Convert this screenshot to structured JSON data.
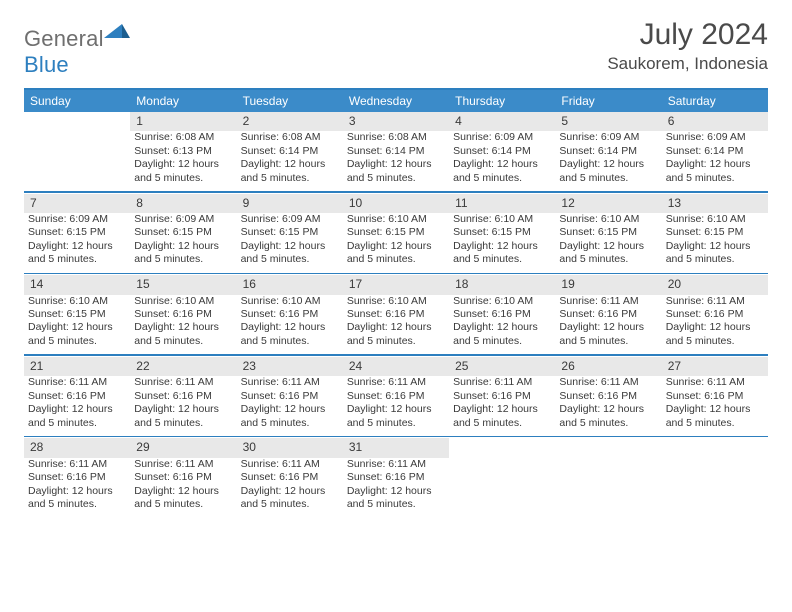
{
  "logo": {
    "general": "General",
    "blue": "Blue"
  },
  "title": "July 2024",
  "location": "Saukorem, Indonesia",
  "colors": {
    "brand_blue": "#3b8bc9",
    "rule_blue": "#2d7fbf",
    "daynum_bg": "#e8e8e8",
    "text": "#3a3a3a",
    "logo_gray": "#6f6f6f",
    "logo_blue": "#2d7fbf",
    "background": "#ffffff"
  },
  "day_headers": [
    "Sunday",
    "Monday",
    "Tuesday",
    "Wednesday",
    "Thursday",
    "Friday",
    "Saturday"
  ],
  "weeks": [
    {
      "daynums": [
        "",
        "1",
        "2",
        "3",
        "4",
        "5",
        "6"
      ],
      "cells": [
        null,
        {
          "sunrise": "6:08 AM",
          "sunset": "6:13 PM",
          "daylight": "12 hours and 5 minutes."
        },
        {
          "sunrise": "6:08 AM",
          "sunset": "6:14 PM",
          "daylight": "12 hours and 5 minutes."
        },
        {
          "sunrise": "6:08 AM",
          "sunset": "6:14 PM",
          "daylight": "12 hours and 5 minutes."
        },
        {
          "sunrise": "6:09 AM",
          "sunset": "6:14 PM",
          "daylight": "12 hours and 5 minutes."
        },
        {
          "sunrise": "6:09 AM",
          "sunset": "6:14 PM",
          "daylight": "12 hours and 5 minutes."
        },
        {
          "sunrise": "6:09 AM",
          "sunset": "6:14 PM",
          "daylight": "12 hours and 5 minutes."
        }
      ]
    },
    {
      "daynums": [
        "7",
        "8",
        "9",
        "10",
        "11",
        "12",
        "13"
      ],
      "cells": [
        {
          "sunrise": "6:09 AM",
          "sunset": "6:15 PM",
          "daylight": "12 hours and 5 minutes."
        },
        {
          "sunrise": "6:09 AM",
          "sunset": "6:15 PM",
          "daylight": "12 hours and 5 minutes."
        },
        {
          "sunrise": "6:09 AM",
          "sunset": "6:15 PM",
          "daylight": "12 hours and 5 minutes."
        },
        {
          "sunrise": "6:10 AM",
          "sunset": "6:15 PM",
          "daylight": "12 hours and 5 minutes."
        },
        {
          "sunrise": "6:10 AM",
          "sunset": "6:15 PM",
          "daylight": "12 hours and 5 minutes."
        },
        {
          "sunrise": "6:10 AM",
          "sunset": "6:15 PM",
          "daylight": "12 hours and 5 minutes."
        },
        {
          "sunrise": "6:10 AM",
          "sunset": "6:15 PM",
          "daylight": "12 hours and 5 minutes."
        }
      ]
    },
    {
      "daynums": [
        "14",
        "15",
        "16",
        "17",
        "18",
        "19",
        "20"
      ],
      "cells": [
        {
          "sunrise": "6:10 AM",
          "sunset": "6:15 PM",
          "daylight": "12 hours and 5 minutes."
        },
        {
          "sunrise": "6:10 AM",
          "sunset": "6:16 PM",
          "daylight": "12 hours and 5 minutes."
        },
        {
          "sunrise": "6:10 AM",
          "sunset": "6:16 PM",
          "daylight": "12 hours and 5 minutes."
        },
        {
          "sunrise": "6:10 AM",
          "sunset": "6:16 PM",
          "daylight": "12 hours and 5 minutes."
        },
        {
          "sunrise": "6:10 AM",
          "sunset": "6:16 PM",
          "daylight": "12 hours and 5 minutes."
        },
        {
          "sunrise": "6:11 AM",
          "sunset": "6:16 PM",
          "daylight": "12 hours and 5 minutes."
        },
        {
          "sunrise": "6:11 AM",
          "sunset": "6:16 PM",
          "daylight": "12 hours and 5 minutes."
        }
      ]
    },
    {
      "daynums": [
        "21",
        "22",
        "23",
        "24",
        "25",
        "26",
        "27"
      ],
      "cells": [
        {
          "sunrise": "6:11 AM",
          "sunset": "6:16 PM",
          "daylight": "12 hours and 5 minutes."
        },
        {
          "sunrise": "6:11 AM",
          "sunset": "6:16 PM",
          "daylight": "12 hours and 5 minutes."
        },
        {
          "sunrise": "6:11 AM",
          "sunset": "6:16 PM",
          "daylight": "12 hours and 5 minutes."
        },
        {
          "sunrise": "6:11 AM",
          "sunset": "6:16 PM",
          "daylight": "12 hours and 5 minutes."
        },
        {
          "sunrise": "6:11 AM",
          "sunset": "6:16 PM",
          "daylight": "12 hours and 5 minutes."
        },
        {
          "sunrise": "6:11 AM",
          "sunset": "6:16 PM",
          "daylight": "12 hours and 5 minutes."
        },
        {
          "sunrise": "6:11 AM",
          "sunset": "6:16 PM",
          "daylight": "12 hours and 5 minutes."
        }
      ]
    },
    {
      "daynums": [
        "28",
        "29",
        "30",
        "31",
        "",
        "",
        ""
      ],
      "cells": [
        {
          "sunrise": "6:11 AM",
          "sunset": "6:16 PM",
          "daylight": "12 hours and 5 minutes."
        },
        {
          "sunrise": "6:11 AM",
          "sunset": "6:16 PM",
          "daylight": "12 hours and 5 minutes."
        },
        {
          "sunrise": "6:11 AM",
          "sunset": "6:16 PM",
          "daylight": "12 hours and 5 minutes."
        },
        {
          "sunrise": "6:11 AM",
          "sunset": "6:16 PM",
          "daylight": "12 hours and 5 minutes."
        },
        null,
        null,
        null
      ]
    }
  ],
  "labels": {
    "sunrise": "Sunrise: ",
    "sunset": "Sunset: ",
    "daylight": "Daylight: "
  }
}
